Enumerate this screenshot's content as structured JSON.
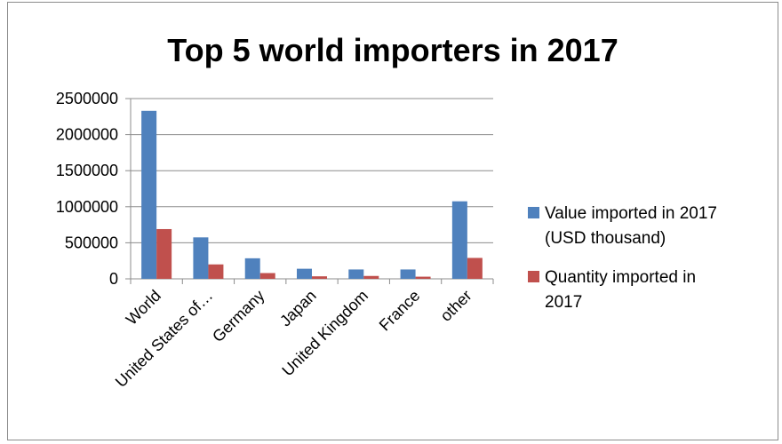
{
  "chart_data": {
    "type": "bar",
    "title": "Top 5 world importers in 2017",
    "categories": [
      "World",
      "United States of…",
      "Germany",
      "Japan",
      "United Kingdom",
      "France",
      "other"
    ],
    "series": [
      {
        "name": "Value imported in 2017 (USD thousand)",
        "name_lines": [
          "Value imported in 2017",
          "(USD thousand)"
        ],
        "color": "#4f81bd",
        "values": [
          2330000,
          575000,
          285000,
          140000,
          130000,
          130000,
          1075000
        ]
      },
      {
        "name": "Quantity imported in 2017",
        "name_lines": [
          "Quantity imported in",
          "2017"
        ],
        "color": "#c0504d",
        "values": [
          690000,
          200000,
          80000,
          35000,
          40000,
          30000,
          290000
        ]
      }
    ],
    "ylim": [
      0,
      2500000
    ],
    "yticks": [
      0,
      500000,
      1000000,
      1500000,
      2000000,
      2500000
    ],
    "grid": true,
    "legend_position": "right",
    "xlabel": "",
    "ylabel": ""
  }
}
